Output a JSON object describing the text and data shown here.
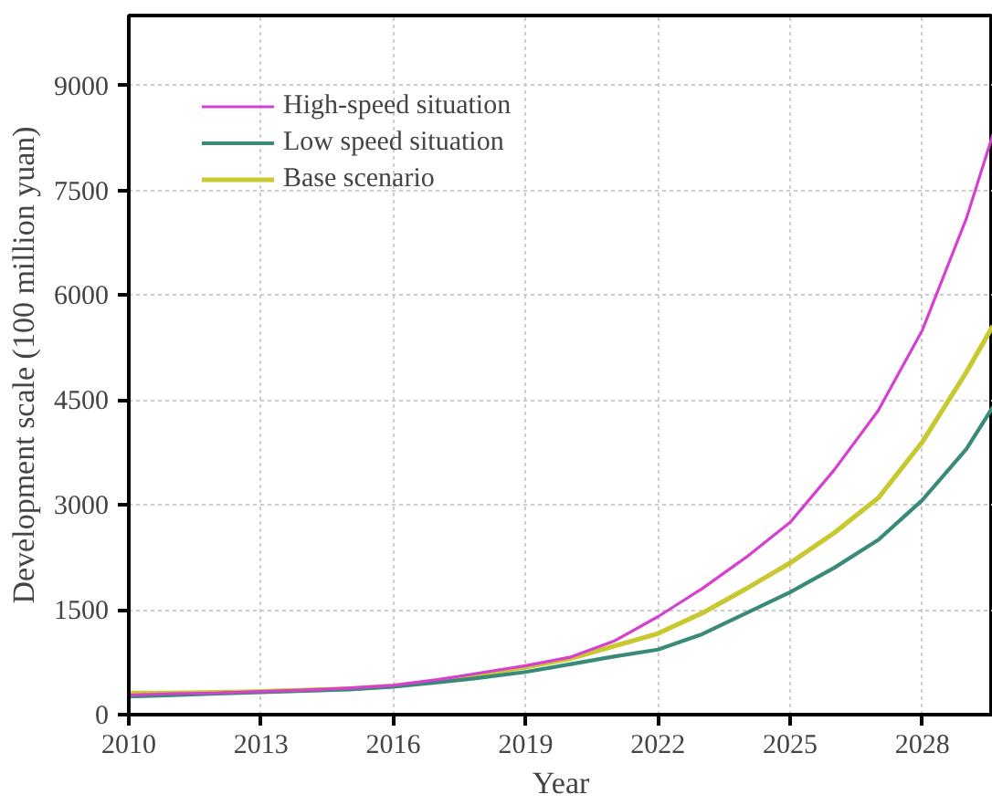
{
  "chart_data": {
    "type": "line",
    "xlabel": "Year",
    "ylabel": "Development scale (100 million yuan)",
    "x": [
      2010,
      2011,
      2012,
      2013,
      2014,
      2015,
      2016,
      2017,
      2018,
      2019,
      2020,
      2021,
      2022,
      2023,
      2024,
      2025,
      2026,
      2027,
      2028,
      2029,
      2029.6
    ],
    "series": [
      {
        "name": "High-speed situation",
        "color": "#d63fd0",
        "values": [
          280,
          300,
          310,
          330,
          350,
          380,
          420,
          500,
          600,
          700,
          820,
          1050,
          1400,
          1800,
          2250,
          2750,
          3500,
          4350,
          5500,
          7100,
          8300
        ]
      },
      {
        "name": "Low speed situation",
        "color": "#3a8a7a",
        "values": [
          260,
          280,
          300,
          320,
          340,
          360,
          400,
          460,
          530,
          610,
          720,
          830,
          930,
          1150,
          1450,
          1750,
          2100,
          2500,
          3070,
          3800,
          4400
        ]
      },
      {
        "name": "Base scenario",
        "color": "#c8c830",
        "values": [
          310,
          310,
          320,
          330,
          350,
          370,
          410,
          480,
          580,
          680,
          800,
          980,
          1160,
          1450,
          1800,
          2170,
          2600,
          3100,
          3900,
          4900,
          5560
        ]
      }
    ],
    "xlim": [
      2010,
      2029.6
    ],
    "ylim": [
      0,
      10000
    ],
    "xticks": [
      2010,
      2013,
      2016,
      2019,
      2022,
      2025,
      2028
    ],
    "yticks": [
      0,
      1500,
      3000,
      4500,
      6000,
      7500,
      9000
    ],
    "grid": true,
    "legend": "top left",
    "line_style": "solid",
    "marker": "none"
  }
}
